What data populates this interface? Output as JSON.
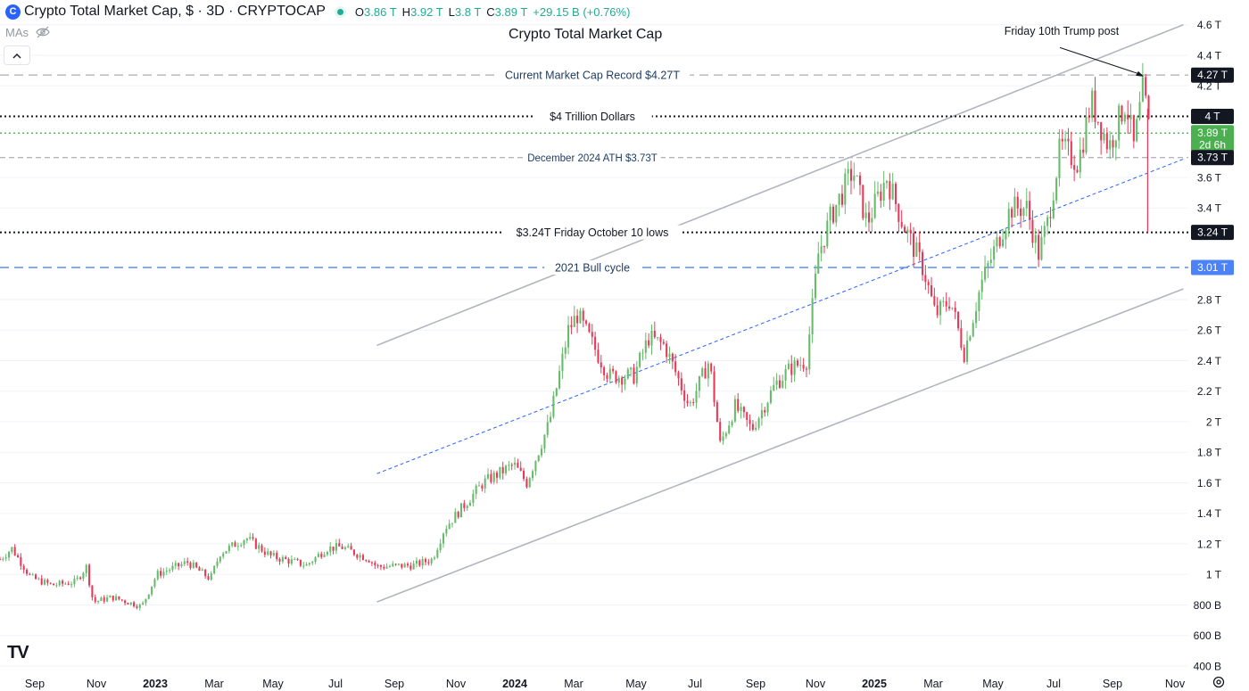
{
  "header": {
    "logo": "C",
    "symbol": "Crypto Total Market Cap, $ · 3D · CRYPTOCAP",
    "open_label": "O",
    "open": "3.86 T",
    "high_label": "H",
    "high": "3.92 T",
    "low_label": "L",
    "low": "3.8 T",
    "close_label": "C",
    "close": "3.89 T",
    "change": "+29.15 B (+0.76%)"
  },
  "indicators": {
    "mas_label": "MAs"
  },
  "collapse_icon": "chevron-up-icon",
  "settings_icon": "gear-icon",
  "watermark": "TV",
  "colors": {
    "up": "#26a69a",
    "down": "#ef5350",
    "up_candle": "#66bb6a",
    "down_candle": "#e53957"
  },
  "chart_data": {
    "type": "candlestick",
    "title": "Crypto Total Market Cap",
    "y_ticks": [
      "4.6 T",
      "4.4 T",
      "4.2 T",
      "3.6 T",
      "3.4 T",
      "2.8 T",
      "2.6 T",
      "2.4 T",
      "2.2 T",
      "2 T",
      "1.8 T",
      "1.6 T",
      "1.4 T",
      "1.2 T",
      "1 T",
      "800 B",
      "600 B",
      "400 B"
    ],
    "x_ticks": [
      {
        "label": "Sep",
        "bold": false
      },
      {
        "label": "Nov",
        "bold": false
      },
      {
        "label": "2023",
        "bold": true
      },
      {
        "label": "Mar",
        "bold": false
      },
      {
        "label": "May",
        "bold": false
      },
      {
        "label": "Jul",
        "bold": false
      },
      {
        "label": "Sep",
        "bold": false
      },
      {
        "label": "Nov",
        "bold": false
      },
      {
        "label": "2024",
        "bold": true
      },
      {
        "label": "Mar",
        "bold": false
      },
      {
        "label": "May",
        "bold": false
      },
      {
        "label": "Jul",
        "bold": false
      },
      {
        "label": "Sep",
        "bold": false
      },
      {
        "label": "Nov",
        "bold": false
      },
      {
        "label": "2025",
        "bold": true
      },
      {
        "label": "Mar",
        "bold": false
      },
      {
        "label": "May",
        "bold": false
      },
      {
        "label": "Jul",
        "bold": false
      },
      {
        "label": "Sep",
        "bold": false
      },
      {
        "label": "Nov",
        "bold": false
      }
    ],
    "x_range": [
      "2022-08-10",
      "2025-11-20"
    ],
    "y_range_trillions": [
      0.4,
      4.68
    ],
    "price_labels": [
      {
        "text": "4.27 T",
        "value": 4.27,
        "bg": "#131722"
      },
      {
        "text": "4 T",
        "value": 4.0,
        "bg": "#131722"
      },
      {
        "text": "3.89 T",
        "sub": "2d 6h",
        "value": 3.89,
        "bg": "#4caf50"
      },
      {
        "text": "3.73 T",
        "value": 3.73,
        "bg": "#131722"
      },
      {
        "text": "3.24 T",
        "value": 3.24,
        "bg": "#131722"
      },
      {
        "text": "3.01 T",
        "value": 3.01,
        "bg": "#4c82f7"
      }
    ],
    "horizontal_lines": [
      {
        "label": "Current Market Cap Record $4.27T",
        "value": 4.27,
        "style": "long-dash",
        "color": "#b2b5be",
        "text_color": "#1e3a5f"
      },
      {
        "label": "$4 Trillion Dollars",
        "value": 4.0,
        "style": "dotted",
        "color": "#131722",
        "text_color": "#131722"
      },
      {
        "label": "",
        "value": 3.89,
        "style": "dotted",
        "color": "#4caf50",
        "text_color": ""
      },
      {
        "label": "December 2024 ATH $3.73T",
        "value": 3.73,
        "style": "dash",
        "color": "#b2b5be",
        "text_color": "#1e3a5f"
      },
      {
        "label": "$3.24T Friday October 10 lows",
        "value": 3.24,
        "style": "dotted",
        "color": "#131722",
        "text_color": "#131722"
      },
      {
        "label": "2021 Bull cycle",
        "value": 3.01,
        "style": "long-dash",
        "color": "#5b8def",
        "text_color": "#1e3a5f"
      }
    ],
    "trend_lines": [
      {
        "name": "upper",
        "from": [
          "2023-08-25",
          2.5
        ],
        "to": [
          "2025-11-15",
          4.6
        ],
        "color": "#b2b5be",
        "style": "solid"
      },
      {
        "name": "middle",
        "from": [
          "2023-08-25",
          1.66
        ],
        "to": [
          "2025-11-15",
          3.72
        ],
        "color": "#2962ff",
        "style": "dashed"
      },
      {
        "name": "lower",
        "from": [
          "2023-08-25",
          0.82
        ],
        "to": [
          "2025-11-15",
          2.87
        ],
        "color": "#b2b5be",
        "style": "solid"
      }
    ],
    "annotation": {
      "text": "Friday 10th Trump post",
      "target_date": "2025-10-06",
      "target_value": 4.26
    },
    "price_anchors": [
      [
        "2022-08-10",
        1.1
      ],
      [
        "2022-08-22",
        1.17
      ],
      [
        "2022-09-10",
        0.98
      ],
      [
        "2022-10-01",
        0.93
      ],
      [
        "2022-10-25",
        0.95
      ],
      [
        "2022-11-05",
        1.05
      ],
      [
        "2022-11-12",
        0.82
      ],
      [
        "2022-12-01",
        0.85
      ],
      [
        "2022-12-31",
        0.79
      ],
      [
        "2023-01-15",
        1.0
      ],
      [
        "2023-02-15",
        1.08
      ],
      [
        "2023-03-10",
        0.97
      ],
      [
        "2023-03-20",
        1.14
      ],
      [
        "2023-04-15",
        1.24
      ],
      [
        "2023-05-10",
        1.12
      ],
      [
        "2023-06-15",
        1.06
      ],
      [
        "2023-07-05",
        1.17
      ],
      [
        "2023-07-20",
        1.18
      ],
      [
        "2023-08-17",
        1.1
      ],
      [
        "2023-08-25",
        1.05
      ],
      [
        "2023-10-01",
        1.06
      ],
      [
        "2023-10-20",
        1.1
      ],
      [
        "2023-11-01",
        1.3
      ],
      [
        "2023-12-10",
        1.6
      ],
      [
        "2024-01-10",
        1.72
      ],
      [
        "2024-01-23",
        1.6
      ],
      [
        "2024-02-15",
        2.0
      ],
      [
        "2024-03-05",
        2.6
      ],
      [
        "2024-03-14",
        2.7
      ],
      [
        "2024-04-15",
        2.3
      ],
      [
        "2024-05-10",
        2.3
      ],
      [
        "2024-05-25",
        2.55
      ],
      [
        "2024-06-10",
        2.5
      ],
      [
        "2024-07-05",
        2.1
      ],
      [
        "2024-07-25",
        2.4
      ],
      [
        "2024-08-05",
        1.85
      ],
      [
        "2024-08-20",
        2.1
      ],
      [
        "2024-09-06",
        1.95
      ],
      [
        "2024-09-30",
        2.25
      ],
      [
        "2024-10-15",
        2.35
      ],
      [
        "2024-10-31",
        2.4
      ],
      [
        "2024-11-12",
        3.1
      ],
      [
        "2024-11-25",
        3.35
      ],
      [
        "2024-12-17",
        3.65
      ],
      [
        "2024-12-31",
        3.3
      ],
      [
        "2025-01-20",
        3.6
      ],
      [
        "2025-02-05",
        3.3
      ],
      [
        "2025-02-26",
        3.0
      ],
      [
        "2025-03-10",
        2.7
      ],
      [
        "2025-03-25",
        2.8
      ],
      [
        "2025-04-08",
        2.45
      ],
      [
        "2025-04-25",
        2.9
      ],
      [
        "2025-05-10",
        3.15
      ],
      [
        "2025-05-25",
        3.4
      ],
      [
        "2025-06-10",
        3.4
      ],
      [
        "2025-06-22",
        3.1
      ],
      [
        "2025-07-01",
        3.3
      ],
      [
        "2025-07-14",
        3.8
      ],
      [
        "2025-08-01",
        3.7
      ],
      [
        "2025-08-14",
        4.1
      ],
      [
        "2025-09-01",
        3.8
      ],
      [
        "2025-09-18",
        4.1
      ],
      [
        "2025-09-26",
        3.8
      ],
      [
        "2025-10-06",
        4.2
      ],
      [
        "2025-10-09",
        4.0
      ],
      [
        "2025-10-12",
        3.89
      ]
    ]
  }
}
